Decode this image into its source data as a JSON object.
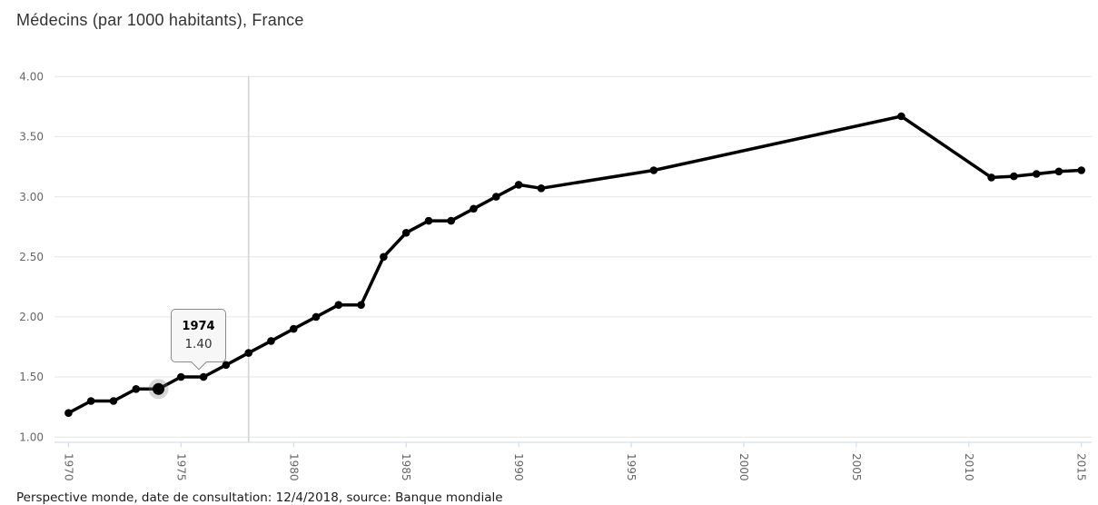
{
  "header": {
    "title": "Médecins (par 1000 habitants), France",
    "menu_icon": "hamburger-menu-icon"
  },
  "tooltip": {
    "year": "1974",
    "value": "1.40"
  },
  "footer": {
    "source_text": "Perspective monde, date de consultation: 12/4/2018, source: Banque mondiale"
  },
  "colors": {
    "series_line": "#000000",
    "marker": "#000000",
    "hover_halo": "rgba(128,128,128,0.32)",
    "gridline": "#e6e6e6",
    "axis_line": "#ccd6eb",
    "tick": "#ccd6eb",
    "axis_label": "#666666",
    "crosshair": "#d4d4d4",
    "tooltip_bg": "#f7f7f7",
    "tooltip_border": "#8c8c8c",
    "title_text": "#333333"
  },
  "chart_data": {
    "type": "line",
    "title": "Médecins (par 1000 habitants), France",
    "xlim": [
      1970,
      2015
    ],
    "ylim": [
      1.0,
      4.0
    ],
    "grid": "horizontal",
    "legend": "none",
    "x_label_rotation": 90,
    "x_ticks": [
      1970,
      1975,
      1980,
      1985,
      1990,
      1995,
      2000,
      2005,
      2010,
      2015
    ],
    "x_tick_labels": [
      "1970",
      "1975",
      "1980",
      "1985",
      "1990",
      "1995",
      "2000",
      "2005",
      "2010",
      "2015"
    ],
    "y_ticks": [
      1.0,
      1.5,
      2.0,
      2.5,
      3.0,
      3.5,
      4.0
    ],
    "y_tick_labels": [
      "1.00",
      "1.50",
      "2.00",
      "2.50",
      "3.00",
      "3.50",
      "4.00"
    ],
    "series": [
      {
        "name": "France",
        "color": "#000000",
        "points": [
          [
            1970,
            1.2
          ],
          [
            1971,
            1.3
          ],
          [
            1972,
            1.3
          ],
          [
            1973,
            1.4
          ],
          [
            1974,
            1.4
          ],
          [
            1975,
            1.5
          ],
          [
            1976,
            1.5
          ],
          [
            1977,
            1.6
          ],
          [
            1978,
            1.7
          ],
          [
            1979,
            1.8
          ],
          [
            1980,
            1.9
          ],
          [
            1981,
            2.0
          ],
          [
            1982,
            2.1
          ],
          [
            1983,
            2.1
          ],
          [
            1984,
            2.5
          ],
          [
            1985,
            2.7
          ],
          [
            1986,
            2.8
          ],
          [
            1987,
            2.8
          ],
          [
            1988,
            2.9
          ],
          [
            1989,
            3.0
          ],
          [
            1990,
            3.1
          ],
          [
            1991,
            3.07
          ],
          [
            1996,
            3.22
          ],
          [
            2007,
            3.67
          ],
          [
            2011,
            3.16
          ],
          [
            2012,
            3.17
          ],
          [
            2013,
            3.19
          ],
          [
            2014,
            3.21
          ],
          [
            2015,
            3.22
          ]
        ]
      }
    ],
    "hover_point": {
      "x": 1974,
      "y": 1.4,
      "label_year": "1974",
      "label_value": "1.40"
    },
    "crosshair_x": 1978
  }
}
